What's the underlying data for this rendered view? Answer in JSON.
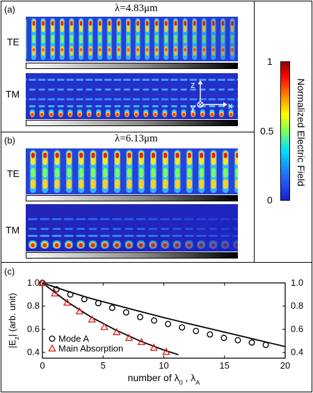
{
  "panel_a": {
    "label": "(a)",
    "wavelength": "λ=4.83μm",
    "te_label": "TE",
    "tm_label": "TM",
    "axes": {
      "z": "z",
      "y": "y",
      "x": "x"
    }
  },
  "panel_b": {
    "label": "(b)",
    "wavelength": "λ=6.13μm",
    "te_label": "TE",
    "tm_label": "TM"
  },
  "colorbar": {
    "title": "Normalized Electric Field",
    "ticks": [
      "1",
      "0.5",
      "0"
    ],
    "colors": [
      "#8b0000",
      "#ff0000",
      "#ff8a00",
      "#ffff00",
      "#7fff5a",
      "#00e0ff",
      "#1f78ff",
      "#1d1dd6"
    ]
  },
  "panel_c": {
    "label": "(c)"
  },
  "chart_data": {
    "type": "scatter",
    "ylabel_main": "|E",
    "ylabel_sub": "z",
    "ylabel_rest": "| (arb. unit)",
    "xlabel_main": "number of λ",
    "xlabel_sub1": "0",
    "xlabel_mid": " , λ",
    "xlabel_sub2": "A",
    "xlim": [
      0,
      20
    ],
    "ylim": [
      0.35,
      1.0
    ],
    "xticks": [
      0,
      5,
      10,
      15,
      20
    ],
    "yticks": [
      0.4,
      0.6,
      0.8,
      1.0
    ],
    "yticklabels": [
      "0.4",
      "0.6",
      "0.8",
      "1.0"
    ],
    "series": [
      {
        "name": "Mode A",
        "marker": "circle",
        "color": "#000000",
        "x": [
          0,
          1.15,
          2.3,
          3.45,
          4.6,
          5.75,
          6.9,
          8.05,
          9.2,
          10.35,
          11.5,
          12.65,
          13.8,
          14.95,
          16.1,
          17.25,
          18.4
        ],
        "y": [
          1.0,
          0.945,
          0.9,
          0.86,
          0.825,
          0.785,
          0.745,
          0.705,
          0.675,
          0.645,
          0.615,
          0.585,
          0.555,
          0.525,
          0.505,
          0.485,
          0.465
        ]
      },
      {
        "name": "Main Absorption",
        "marker": "triangle",
        "color": "#e02020",
        "x": [
          0,
          1.02,
          2.04,
          3.06,
          4.08,
          5.1,
          6.12,
          7.14,
          8.16,
          9.18,
          10.2
        ],
        "y": [
          1.0,
          0.91,
          0.83,
          0.755,
          0.685,
          0.62,
          0.575,
          0.525,
          0.49,
          0.44,
          0.405
        ]
      }
    ],
    "fits": [
      {
        "x": [
          0,
          2,
          4,
          6,
          8,
          10,
          12,
          14,
          16,
          18,
          20
        ],
        "y": [
          1.0,
          0.93,
          0.865,
          0.81,
          0.755,
          0.7,
          0.65,
          0.6,
          0.55,
          0.5,
          0.45
        ]
      },
      {
        "x": [
          0,
          2,
          4,
          6,
          8,
          10,
          11.2
        ],
        "y": [
          1.0,
          0.84,
          0.705,
          0.595,
          0.5,
          0.42,
          0.38
        ]
      }
    ],
    "legend_position": "bottom-left"
  }
}
